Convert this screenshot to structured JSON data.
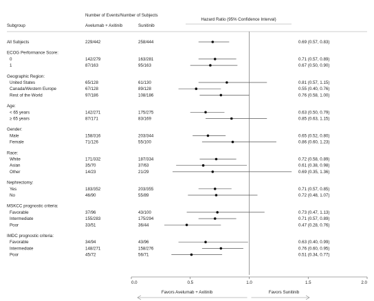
{
  "chart_data": {
    "type": "forest",
    "headers": {
      "events": "Number of Events/Number of Subjects",
      "subgroup": "Subgroup",
      "arm1": "Avelumab + Axitinib",
      "arm2": "Sunitinib",
      "hr": "Hazard Ratio (95% Confidence Interval)"
    },
    "xlim": [
      0.0,
      2.0
    ],
    "reference_line": 1.0,
    "x_ticks": [
      "0.0",
      "0.5",
      "1.0",
      "1.5",
      "2.0"
    ],
    "favors_left": "Favors Avelumab + Axitinib",
    "favors_right": "Favors Sunitinib",
    "rows": [
      {
        "kind": "data",
        "label": "All Subjects",
        "indent": false,
        "arm1": "229/442",
        "arm2": "258/444",
        "ci_text": "0.69 (0.57, 0.83)",
        "hr": 0.69,
        "lo": 0.57,
        "hi": 0.83
      },
      {
        "kind": "group",
        "label": "ECOG Performance Score:"
      },
      {
        "kind": "data",
        "label": "0",
        "indent": true,
        "arm1": "142/279",
        "arm2": "163/281",
        "ci_text": "0.71 (0.57, 0.89)",
        "hr": 0.71,
        "lo": 0.57,
        "hi": 0.89
      },
      {
        "kind": "data",
        "label": "1",
        "indent": true,
        "arm1": "87/163",
        "arm2": "95/163",
        "ci_text": "0.67 (0.50, 0.90)",
        "hr": 0.67,
        "lo": 0.5,
        "hi": 0.9
      },
      {
        "kind": "group",
        "label": "Geographic Region:"
      },
      {
        "kind": "data",
        "label": "United States",
        "indent": true,
        "arm1": "65/128",
        "arm2": "61/130",
        "ci_text": "0.81 (0.57, 1.15)",
        "hr": 0.81,
        "lo": 0.57,
        "hi": 1.15
      },
      {
        "kind": "data",
        "label": "Canada/Western Europe",
        "indent": true,
        "arm1": "67/128",
        "arm2": "89/128",
        "ci_text": "0.55 (0.40, 0.76)",
        "hr": 0.55,
        "lo": 0.4,
        "hi": 0.76
      },
      {
        "kind": "data",
        "label": "Rest of the World",
        "indent": true,
        "arm1": "97/186",
        "arm2": "108/186",
        "ci_text": "0.76 (0.58, 1.00)",
        "hr": 0.76,
        "lo": 0.58,
        "hi": 1.0
      },
      {
        "kind": "group",
        "label": "Age:"
      },
      {
        "kind": "data",
        "label": "< 65 years",
        "indent": true,
        "arm1": "142/271",
        "arm2": "175/275",
        "ci_text": "0.63 (0.50, 0.79)",
        "hr": 0.63,
        "lo": 0.5,
        "hi": 0.79
      },
      {
        "kind": "data",
        "label": "≥ 65 years",
        "indent": true,
        "arm1": "87/171",
        "arm2": "83/169",
        "ci_text": "0.85 (0.63, 1.15)",
        "hr": 0.85,
        "lo": 0.63,
        "hi": 1.15
      },
      {
        "kind": "group",
        "label": "Gender:"
      },
      {
        "kind": "data",
        "label": "Male",
        "indent": true,
        "arm1": "158/316",
        "arm2": "203/344",
        "ci_text": "0.65 (0.52, 0.80)",
        "hr": 0.65,
        "lo": 0.52,
        "hi": 0.8
      },
      {
        "kind": "data",
        "label": "Female",
        "indent": true,
        "arm1": "71/126",
        "arm2": "55/100",
        "ci_text": "0.86 (0.60, 1.23)",
        "hr": 0.86,
        "lo": 0.6,
        "hi": 1.23
      },
      {
        "kind": "group",
        "label": "Race:"
      },
      {
        "kind": "data",
        "label": "White",
        "indent": true,
        "arm1": "171/332",
        "arm2": "187/334",
        "ci_text": "0.72 (0.58, 0.89)",
        "hr": 0.72,
        "lo": 0.58,
        "hi": 0.89
      },
      {
        "kind": "data",
        "label": "Asian",
        "indent": true,
        "arm1": "35/70",
        "arm2": "37/63",
        "ci_text": "0.61 (0.38, 0.98)",
        "hr": 0.61,
        "lo": 0.38,
        "hi": 0.98
      },
      {
        "kind": "data",
        "label": "Other",
        "indent": true,
        "arm1": "14/23",
        "arm2": "21/29",
        "ci_text": "0.69 (0.35, 1.36)",
        "hr": 0.69,
        "lo": 0.35,
        "hi": 1.36
      },
      {
        "kind": "group",
        "label": "Nephrectomy:"
      },
      {
        "kind": "data",
        "label": "Yes",
        "indent": true,
        "arm1": "183/352",
        "arm2": "203/355",
        "ci_text": "0.71 (0.57, 0.85)",
        "hr": 0.71,
        "lo": 0.57,
        "hi": 0.85
      },
      {
        "kind": "data",
        "label": "No",
        "indent": true,
        "arm1": "46/90",
        "arm2": "55/89",
        "ci_text": "0.72 (0.48, 1.07)",
        "hr": 0.72,
        "lo": 0.48,
        "hi": 1.07
      },
      {
        "kind": "group",
        "label": "MSKCC prognostic criteria:"
      },
      {
        "kind": "data",
        "label": "Favorable",
        "indent": true,
        "arm1": "37/96",
        "arm2": "43/100",
        "ci_text": "0.73 (0.47, 1.13)",
        "hr": 0.73,
        "lo": 0.47,
        "hi": 1.13
      },
      {
        "kind": "data",
        "label": "Intermediate",
        "indent": true,
        "arm1": "155/283",
        "arm2": "175/294",
        "ci_text": "0.71 (0.57, 0.89)",
        "hr": 0.71,
        "lo": 0.57,
        "hi": 0.89
      },
      {
        "kind": "data",
        "label": "Poor",
        "indent": true,
        "arm1": "33/51",
        "arm2": "36/44",
        "ci_text": "0.47 (0.28, 0.76)",
        "hr": 0.47,
        "lo": 0.28,
        "hi": 0.76
      },
      {
        "kind": "group",
        "label": "IMDC prognostic criteria:"
      },
      {
        "kind": "data",
        "label": "Favorable",
        "indent": true,
        "arm1": "34/94",
        "arm2": "43/96",
        "ci_text": "0.63 (0.40, 0.99)",
        "hr": 0.63,
        "lo": 0.4,
        "hi": 0.99
      },
      {
        "kind": "data",
        "label": "Intermediate",
        "indent": true,
        "arm1": "148/271",
        "arm2": "158/276",
        "ci_text": "0.76 (0.60, 0.95)",
        "hr": 0.76,
        "lo": 0.6,
        "hi": 0.95
      },
      {
        "kind": "data",
        "label": "Poor",
        "indent": true,
        "arm1": "45/72",
        "arm2": "56/71",
        "ci_text": "0.51 (0.34, 0.77)",
        "hr": 0.51,
        "lo": 0.34,
        "hi": 0.77
      }
    ]
  }
}
